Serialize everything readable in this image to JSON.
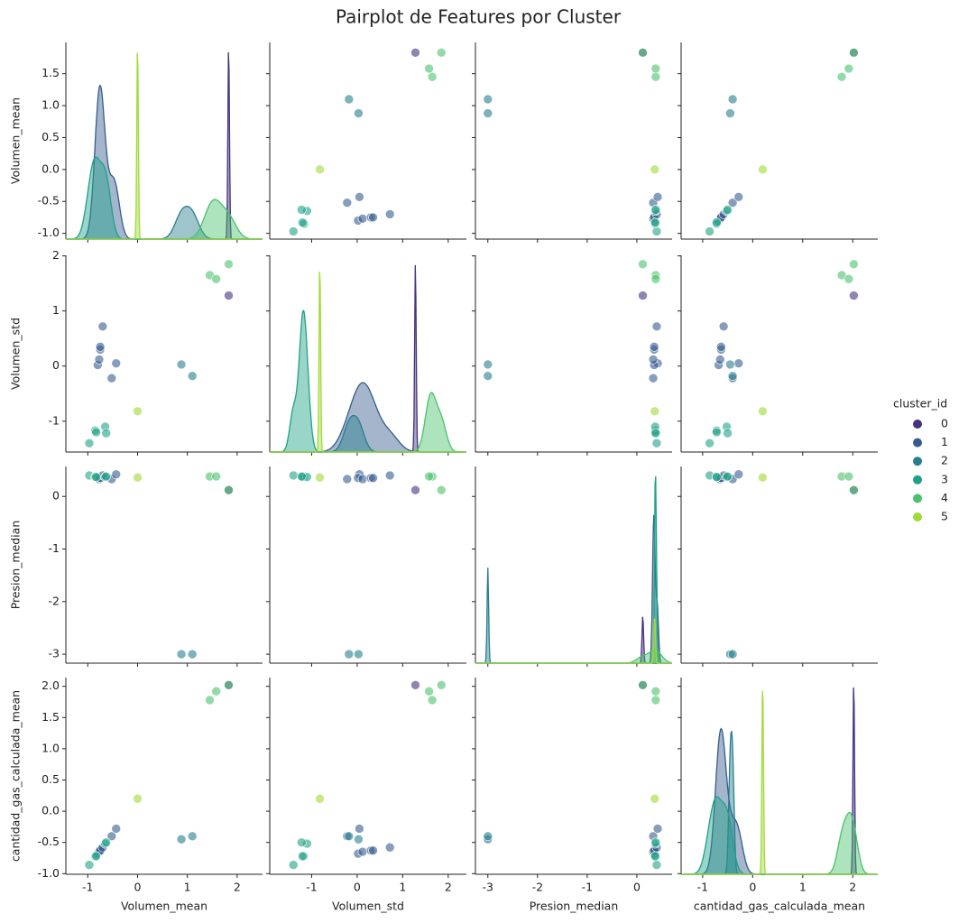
{
  "chart_data": {
    "type": "scatter",
    "diag": "kde",
    "title": "Pairplot de Features por Cluster",
    "legend_title": "cluster_id",
    "legend": "right",
    "variables": [
      {
        "label": "Volumen_mean",
        "xlim": [
          -1.44,
          2.51
        ],
        "xticks": [
          -1,
          0,
          1,
          2
        ],
        "ylim": [
          -1.09,
          1.99
        ],
        "yticks": [
          {
            "value": -1,
            "label": "-1.0"
          },
          -0.5,
          {
            "value": 0,
            "label": "0.0"
          },
          0.5,
          {
            "value": 1,
            "label": "1.0"
          },
          1.5
        ]
      },
      {
        "label": "Volumen_std",
        "xlim": [
          -1.92,
          2.4
        ],
        "xticks": [
          -1,
          0,
          1,
          2
        ],
        "ylim": [
          -1.56,
          2.01
        ],
        "yticks": [
          -1,
          0,
          1,
          2
        ]
      },
      {
        "label": "Presion_median",
        "xlim": [
          -3.25,
          0.71
        ],
        "xticks": [
          -3,
          -2,
          -1,
          0
        ],
        "ylim": [
          -3.17,
          0.57
        ],
        "yticks": [
          -3,
          -2,
          -1,
          0
        ]
      },
      {
        "label": "cantidad_gas_calculada_mean",
        "xlim": [
          -1.43,
          2.5
        ],
        "xticks": [
          -1,
          0,
          1,
          2
        ],
        "ylim": [
          -1.01,
          2.14
        ],
        "yticks": [
          {
            "value": -1,
            "label": "-1.0"
          },
          -0.5,
          {
            "value": 0,
            "label": "0.0"
          },
          0.5,
          {
            "value": 1,
            "label": "1.0"
          },
          1.5,
          {
            "value": 2,
            "label": "2.0"
          }
        ]
      }
    ],
    "series": [
      {
        "name": "0",
        "color": "#46327e",
        "values": [
          [
            1.83
          ],
          [
            1.28
          ],
          [
            0.12
          ],
          [
            2.02
          ]
        ]
      },
      {
        "name": "1",
        "color": "#365c8d",
        "values": [
          [
            -0.52,
            -0.43,
            -0.8,
            -0.77,
            -0.75,
            -0.75,
            -0.7
          ],
          [
            -0.22,
            0.05,
            0.02,
            0.12,
            0.3,
            0.35,
            0.72
          ],
          [
            0.33,
            0.42,
            0.35,
            0.33,
            0.35,
            0.35,
            0.4
          ],
          [
            -0.4,
            -0.28,
            -0.68,
            -0.65,
            -0.63,
            -0.63,
            -0.58
          ]
        ]
      },
      {
        "name": "2",
        "color": "#277f8e",
        "values": [
          [
            0.88,
            1.1
          ],
          [
            0.03,
            -0.18
          ],
          [
            -3,
            -3
          ],
          [
            -0.45,
            -0.4
          ]
        ]
      },
      {
        "name": "3",
        "color": "#1fa187",
        "values": [
          [
            -0.97,
            -0.85,
            -0.83,
            -0.65,
            -0.63
          ],
          [
            -1.4,
            -1.17,
            -1.2,
            -1.1,
            -1.22
          ],
          [
            0.4,
            0.37,
            0.37,
            0.37,
            0.38
          ],
          [
            -0.86,
            -0.72,
            -0.72,
            -0.52,
            -0.5
          ]
        ]
      },
      {
        "name": "4",
        "color": "#4ac16d",
        "values": [
          [
            1.45,
            1.58,
            1.83
          ],
          [
            1.65,
            1.58,
            1.85
          ],
          [
            0.38,
            0.38,
            0.12
          ],
          [
            1.78,
            1.92,
            2.02
          ]
        ]
      },
      {
        "name": "5",
        "color": "#a0da39",
        "values": [
          [
            0
          ],
          [
            -0.82
          ],
          [
            0.36
          ],
          [
            0.2
          ]
        ]
      }
    ]
  }
}
